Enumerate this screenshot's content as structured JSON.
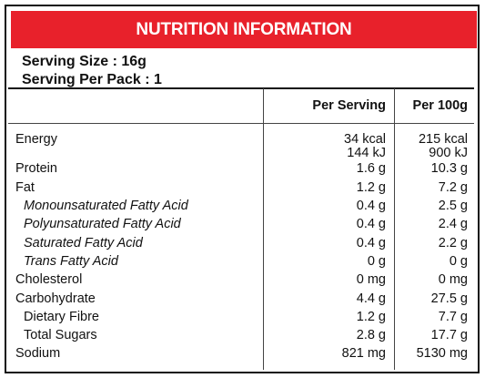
{
  "title": "NUTRITION INFORMATION",
  "colors": {
    "header_bg": "#e8212b",
    "header_text": "#ffffff",
    "border": "#111111"
  },
  "serving_size": "Serving Size : 16g",
  "serving_per_pack": "Serving Per Pack : 1",
  "columns": {
    "per_serving": "Per Serving",
    "per_100g": "Per 100g"
  },
  "rows": [
    {
      "label": "Energy",
      "per_serving": "34 kcal",
      "per_100g": "215 kcal",
      "style": "normal"
    },
    {
      "label": "",
      "per_serving": "144 kJ",
      "per_100g": "900 kJ",
      "style": "normal"
    },
    {
      "label": "Protein",
      "per_serving": "1.6 g",
      "per_100g": "10.3 g",
      "style": "normal"
    },
    {
      "label": "Fat",
      "per_serving": "1.2 g",
      "per_100g": "7.2 g",
      "style": "normal"
    },
    {
      "label": "Monounsaturated Fatty Acid",
      "per_serving": "0.4 g",
      "per_100g": "2.5 g",
      "style": "italic"
    },
    {
      "label": "Polyunsaturated Fatty Acid",
      "per_serving": "0.4 g",
      "per_100g": "2.4 g",
      "style": "italic"
    },
    {
      "label": "Saturated Fatty Acid",
      "per_serving": "0.4 g",
      "per_100g": "2.2 g",
      "style": "italic"
    },
    {
      "label": "Trans Fatty Acid",
      "per_serving": "0 g",
      "per_100g": "0 g",
      "style": "italic"
    },
    {
      "label": "Cholesterol",
      "per_serving": "0 mg",
      "per_100g": "0 mg",
      "style": "normal"
    },
    {
      "label": "Carbohydrate",
      "per_serving": "4.4 g",
      "per_100g": "27.5 g",
      "style": "normal"
    },
    {
      "label": "Dietary Fibre",
      "per_serving": "1.2 g",
      "per_100g": "7.7 g",
      "style": "sub"
    },
    {
      "label": "Total Sugars",
      "per_serving": "2.8 g",
      "per_100g": "17.7 g",
      "style": "sub"
    },
    {
      "label": "Sodium",
      "per_serving": "821 mg",
      "per_100g": "5130 mg",
      "style": "normal"
    }
  ]
}
